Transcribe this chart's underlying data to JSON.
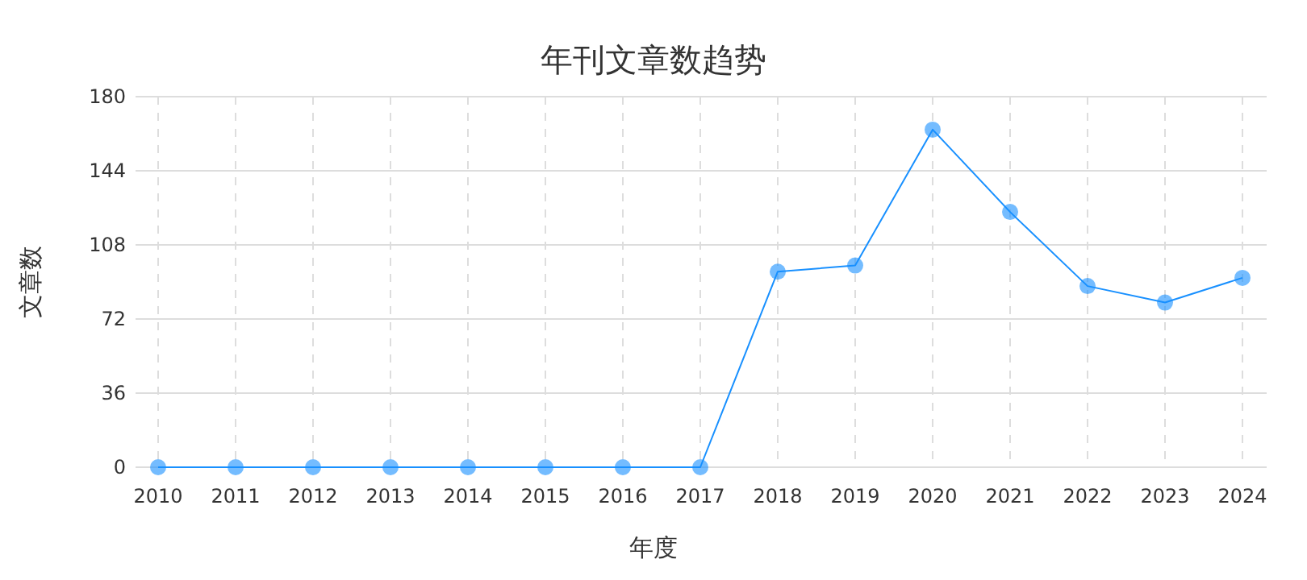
{
  "chart_data": {
    "type": "line",
    "title": "年刊文章数趋势",
    "xlabel": "年度",
    "ylabel": "文章数",
    "categories": [
      "2010",
      "2011",
      "2012",
      "2013",
      "2014",
      "2015",
      "2016",
      "2017",
      "2018",
      "2019",
      "2020",
      "2021",
      "2022",
      "2023",
      "2024"
    ],
    "series": [
      {
        "color": "#1890ff",
        "values": [
          0,
          0,
          0,
          0,
          0,
          0,
          0,
          0,
          95,
          98,
          164,
          124,
          88,
          80,
          92
        ]
      }
    ],
    "ylim": [
      0,
      180
    ],
    "yticks": [
      0,
      36,
      72,
      108,
      144,
      180
    ],
    "grid": true,
    "marker": "circle",
    "line_style": "solid"
  }
}
